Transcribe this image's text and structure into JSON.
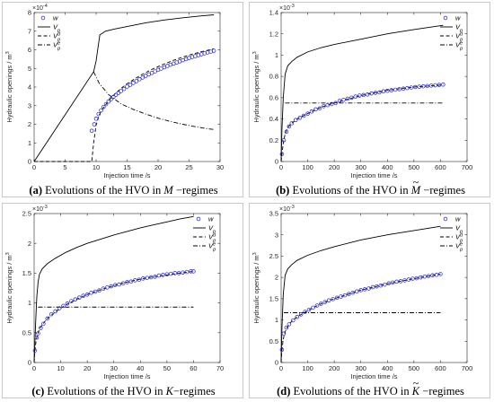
{
  "chart_data": [
    {
      "type": "line",
      "id": "a",
      "caption": {
        "letter": "(a)",
        "text": "Evolutions of the HVO in",
        "symbol": "M",
        "tilde": false,
        "suffix": " −regimes"
      },
      "xlabel": "Injection time /s",
      "ylabel": "Hydraulic openings / m",
      "ylabel_sup": "3",
      "y_exponent": "10",
      "y_exponent_power": "-4",
      "xlim": [
        0,
        30
      ],
      "ylim": [
        0,
        8
      ],
      "xticks": [
        0,
        5,
        10,
        15,
        20,
        25,
        30
      ],
      "yticks": [
        0,
        1,
        2,
        3,
        4,
        5,
        6,
        7,
        8
      ],
      "legend": {
        "position": "top-left",
        "entries": [
          "w",
          "V_p",
          "V_p^d",
          "V_p^e"
        ]
      },
      "series": [
        {
          "name": "V_p",
          "style": "solid",
          "x": [
            0,
            9.6,
            10,
            10.6,
            11.5,
            13,
            15,
            18,
            21,
            24,
            27,
            29
          ],
          "y": [
            0,
            4.82,
            5.4,
            6.8,
            7.0,
            7.12,
            7.25,
            7.45,
            7.6,
            7.72,
            7.82,
            7.88
          ]
        },
        {
          "name": "V_p^d",
          "style": "dashed",
          "x": [
            0,
            9.3,
            9.6,
            10,
            10.5,
            11,
            12,
            13,
            14,
            15,
            17,
            19,
            21,
            23,
            25,
            27,
            29
          ],
          "y": [
            0,
            0,
            1.0,
            1.95,
            2.5,
            2.8,
            3.25,
            3.62,
            3.92,
            4.18,
            4.6,
            4.95,
            5.24,
            5.5,
            5.72,
            5.9,
            6.05
          ]
        },
        {
          "name": "V_p^e",
          "style": "dashdot",
          "x": [
            9.6,
            10.5,
            12,
            14,
            16,
            18,
            20,
            22,
            24,
            26,
            28,
            29
          ],
          "y": [
            4.82,
            4.2,
            3.6,
            3.1,
            2.8,
            2.55,
            2.33,
            2.15,
            2.0,
            1.87,
            1.76,
            1.72
          ]
        },
        {
          "name": "w",
          "style": "marker",
          "x": [
            9.3,
            9.7,
            10.0,
            10.4,
            10.8,
            11.2,
            11.6,
            12.0,
            12.4,
            12.8,
            13.2,
            13.6,
            14.0,
            14.5,
            15.0,
            15.5,
            16.0,
            16.5,
            17.0,
            17.5,
            18.0,
            18.5,
            19.0,
            19.5,
            20.0,
            20.5,
            21.0,
            21.5,
            22.0,
            22.5,
            23.0,
            23.5,
            24.0,
            24.5,
            25.0,
            25.5,
            26.0,
            26.5,
            27.0,
            27.5,
            28.0,
            28.5,
            29.0
          ],
          "y": [
            1.65,
            2.0,
            2.3,
            2.55,
            2.75,
            2.93,
            3.08,
            3.22,
            3.35,
            3.47,
            3.58,
            3.68,
            3.78,
            3.9,
            4.02,
            4.12,
            4.22,
            4.32,
            4.42,
            4.51,
            4.6,
            4.68,
            4.76,
            4.84,
            4.92,
            4.99,
            5.06,
            5.13,
            5.2,
            5.26,
            5.32,
            5.38,
            5.44,
            5.5,
            5.56,
            5.61,
            5.66,
            5.71,
            5.76,
            5.81,
            5.86,
            5.9,
            5.95
          ]
        }
      ]
    },
    {
      "type": "line",
      "id": "b",
      "caption": {
        "letter": "(b)",
        "text": "Evolutions of the HVO in",
        "symbol": "M",
        "tilde": true,
        "suffix": " −regimes"
      },
      "xlabel": "Injection time /s",
      "ylabel": "Hydraulic openings / m",
      "ylabel_sup": "3",
      "y_exponent": "10",
      "y_exponent_power": "-3",
      "xlim": [
        0,
        700
      ],
      "ylim": [
        0,
        1.4
      ],
      "xticks": [
        0,
        100,
        200,
        300,
        400,
        500,
        600,
        700
      ],
      "yticks": [
        0,
        0.2,
        0.4,
        0.6,
        0.8,
        1,
        1.2,
        1.4
      ],
      "legend": {
        "position": "top-right",
        "entries": [
          "w",
          "V_p",
          "V_p^d",
          "V_p^e"
        ]
      },
      "series": [
        {
          "name": "V_p",
          "style": "solid",
          "x": [
            0,
            3,
            8,
            15,
            25,
            40,
            60,
            100,
            150,
            200,
            300,
            400,
            500,
            610
          ],
          "y": [
            0,
            0.3,
            0.6,
            0.82,
            0.9,
            0.94,
            0.98,
            1.03,
            1.07,
            1.1,
            1.15,
            1.2,
            1.24,
            1.28
          ]
        },
        {
          "name": "V_p^d",
          "style": "dashed",
          "x": [
            0,
            3,
            8,
            15,
            25,
            40,
            60,
            100,
            150,
            200,
            300,
            400,
            500,
            610
          ],
          "y": [
            0,
            0.07,
            0.17,
            0.26,
            0.32,
            0.36,
            0.4,
            0.45,
            0.51,
            0.55,
            0.62,
            0.67,
            0.7,
            0.72
          ]
        },
        {
          "name": "V_p^e",
          "style": "dashdot",
          "x": [
            15,
            610
          ],
          "y": [
            0.55,
            0.55
          ]
        },
        {
          "name": "w",
          "style": "marker",
          "x": [
            3,
            10,
            20,
            30,
            40,
            55,
            70,
            85,
            100,
            115,
            130,
            145,
            160,
            175,
            190,
            205,
            220,
            235,
            250,
            265,
            280,
            295,
            310,
            325,
            340,
            355,
            370,
            385,
            400,
            415,
            430,
            445,
            460,
            475,
            490,
            505,
            520,
            535,
            550,
            565,
            580,
            595,
            610
          ],
          "y": [
            0.07,
            0.2,
            0.28,
            0.33,
            0.36,
            0.39,
            0.41,
            0.43,
            0.45,
            0.47,
            0.49,
            0.5,
            0.52,
            0.53,
            0.54,
            0.55,
            0.57,
            0.58,
            0.59,
            0.6,
            0.61,
            0.62,
            0.625,
            0.63,
            0.64,
            0.645,
            0.65,
            0.66,
            0.665,
            0.67,
            0.675,
            0.68,
            0.685,
            0.69,
            0.695,
            0.7,
            0.703,
            0.707,
            0.71,
            0.714,
            0.717,
            0.72,
            0.723
          ]
        }
      ]
    },
    {
      "type": "line",
      "id": "c",
      "caption": {
        "letter": "(c)",
        "text": "Evolutions of the HVO in",
        "symbol": "K",
        "tilde": false,
        "suffix": "−regimes"
      },
      "xlabel": "Injection time /s",
      "ylabel": "Hydraulic openings / m",
      "ylabel_sup": "3",
      "y_exponent": "10",
      "y_exponent_power": "-3",
      "xlim": [
        0,
        70
      ],
      "ylim": [
        0,
        2.5
      ],
      "xticks": [
        0,
        10,
        20,
        30,
        40,
        50,
        60,
        70
      ],
      "yticks": [
        0,
        0.5,
        1,
        1.5,
        2,
        2.5
      ],
      "legend": {
        "position": "top-right",
        "entries": [
          "w",
          "V_p",
          "V_p^d",
          "V_p^e"
        ]
      },
      "series": [
        {
          "name": "V_p",
          "style": "solid",
          "x": [
            0,
            0.5,
            1,
            1.5,
            2,
            3,
            5,
            8,
            12,
            16,
            20,
            25,
            30,
            35,
            40,
            45,
            50,
            55,
            60
          ],
          "y": [
            0,
            0.6,
            1.1,
            1.35,
            1.48,
            1.57,
            1.66,
            1.75,
            1.85,
            1.93,
            2.0,
            2.07,
            2.14,
            2.2,
            2.26,
            2.31,
            2.36,
            2.41,
            2.45
          ]
        },
        {
          "name": "V_p^d",
          "style": "dashed",
          "x": [
            0,
            0.3,
            0.7,
            1,
            1.5,
            2,
            3,
            5,
            8,
            12,
            16,
            20,
            25,
            30,
            35,
            40,
            45,
            50,
            55,
            60
          ],
          "y": [
            0,
            0.2,
            0.35,
            0.42,
            0.5,
            0.56,
            0.63,
            0.74,
            0.85,
            0.97,
            1.06,
            1.14,
            1.22,
            1.29,
            1.35,
            1.4,
            1.44,
            1.47,
            1.5,
            1.53
          ]
        },
        {
          "name": "V_p^e",
          "style": "dashdot",
          "x": [
            1.5,
            60
          ],
          "y": [
            0.93,
            0.93
          ]
        },
        {
          "name": "w",
          "style": "marker",
          "x": [
            0.3,
            1,
            1.5,
            2.5,
            3.5,
            5,
            6.5,
            8,
            9.5,
            11,
            12.5,
            14,
            15.5,
            17,
            18.5,
            20,
            21.5,
            23,
            24.5,
            26,
            27.5,
            29,
            30.5,
            32,
            33.5,
            35,
            36.5,
            38,
            39.5,
            41,
            42.5,
            44,
            45.5,
            47,
            48.5,
            50,
            51.5,
            53,
            54.5,
            56,
            57.5,
            59,
            60
          ],
          "y": [
            0.2,
            0.42,
            0.49,
            0.58,
            0.65,
            0.74,
            0.81,
            0.86,
            0.91,
            0.95,
            0.99,
            1.03,
            1.06,
            1.09,
            1.12,
            1.14,
            1.17,
            1.19,
            1.21,
            1.24,
            1.26,
            1.28,
            1.3,
            1.31,
            1.33,
            1.35,
            1.36,
            1.38,
            1.39,
            1.41,
            1.42,
            1.43,
            1.44,
            1.46,
            1.47,
            1.48,
            1.49,
            1.5,
            1.5,
            1.51,
            1.52,
            1.53,
            1.53
          ]
        }
      ]
    },
    {
      "type": "line",
      "id": "d",
      "caption": {
        "letter": "(d)",
        "text": "Evolutions of the HVO in",
        "symbol": "K",
        "tilde": true,
        "suffix": " −regimes"
      },
      "xlabel": "Injection time /s",
      "ylabel": "Hydraulic openings / m",
      "ylabel_sup": "3",
      "y_exponent": "10",
      "y_exponent_power": "-3",
      "xlim": [
        0,
        700
      ],
      "ylim": [
        0,
        3.5
      ],
      "xticks": [
        0,
        100,
        200,
        300,
        400,
        500,
        600,
        700
      ],
      "yticks": [
        0,
        0.5,
        1,
        1.5,
        2,
        2.5,
        3,
        3.5
      ],
      "legend": {
        "position": "top-right",
        "entries": [
          "w",
          "V_p",
          "V_p^d",
          "V_p^e"
        ]
      },
      "series": [
        {
          "name": "V_p",
          "style": "solid",
          "x": [
            0,
            3,
            8,
            15,
            25,
            40,
            60,
            100,
            150,
            200,
            300,
            400,
            500,
            600
          ],
          "y": [
            0,
            0.8,
            1.6,
            2.05,
            2.2,
            2.3,
            2.4,
            2.52,
            2.63,
            2.72,
            2.88,
            3.0,
            3.1,
            3.2
          ]
        },
        {
          "name": "V_p^d",
          "style": "dashed",
          "x": [
            0,
            3,
            8,
            15,
            25,
            40,
            60,
            100,
            150,
            200,
            300,
            400,
            500,
            600
          ],
          "y": [
            0,
            0.3,
            0.55,
            0.72,
            0.85,
            0.97,
            1.07,
            1.22,
            1.38,
            1.5,
            1.7,
            1.85,
            1.97,
            2.08
          ]
        },
        {
          "name": "V_p^e",
          "style": "dashdot",
          "x": [
            10,
            600
          ],
          "y": [
            1.17,
            1.17
          ]
        },
        {
          "name": "w",
          "style": "marker",
          "x": [
            3,
            10,
            20,
            30,
            45,
            60,
            75,
            90,
            105,
            120,
            135,
            150,
            165,
            180,
            195,
            210,
            225,
            240,
            255,
            270,
            285,
            300,
            315,
            330,
            345,
            360,
            375,
            390,
            405,
            420,
            435,
            450,
            465,
            480,
            495,
            510,
            525,
            540,
            555,
            570,
            585,
            600
          ],
          "y": [
            0.3,
            0.68,
            0.82,
            0.9,
            0.99,
            1.07,
            1.13,
            1.19,
            1.24,
            1.29,
            1.34,
            1.38,
            1.42,
            1.46,
            1.49,
            1.52,
            1.55,
            1.58,
            1.61,
            1.64,
            1.67,
            1.7,
            1.72,
            1.74,
            1.77,
            1.79,
            1.81,
            1.83,
            1.86,
            1.88,
            1.9,
            1.91,
            1.93,
            1.95,
            1.97,
            1.98,
            2.0,
            2.02,
            2.03,
            2.05,
            2.06,
            2.08
          ]
        }
      ]
    }
  ]
}
